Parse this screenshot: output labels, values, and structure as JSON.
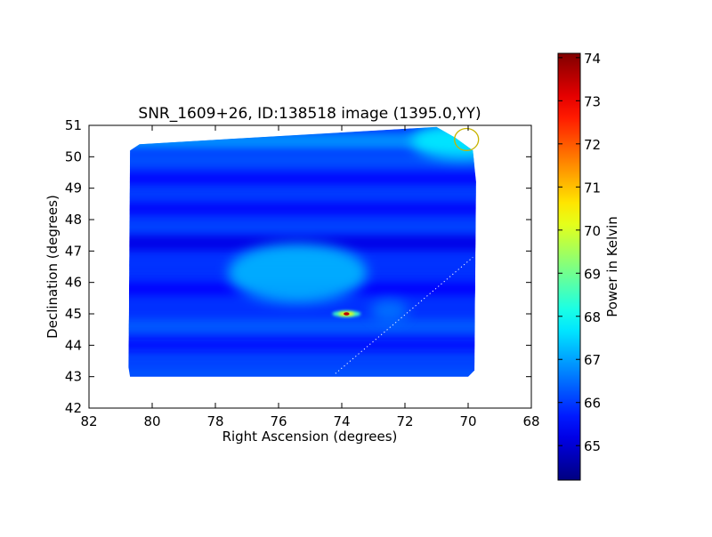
{
  "chart_data": {
    "type": "heatmap",
    "title": "SNR_1609+26, ID:138518 image (1395.0,YY)",
    "xlabel": "Right Ascension (degrees)",
    "ylabel": "Declination (degrees)",
    "xlim": [
      82,
      68
    ],
    "ylim": [
      42,
      51
    ],
    "x_ticks": [
      82,
      80,
      78,
      76,
      74,
      72,
      70,
      68
    ],
    "y_ticks": [
      42,
      43,
      44,
      45,
      46,
      47,
      48,
      49,
      50,
      51
    ],
    "colorbar": {
      "label": "Power in Kelvin",
      "range": [
        64.2,
        74.1
      ],
      "ticks": [
        65,
        66,
        67,
        68,
        69,
        70,
        71,
        72,
        73,
        74
      ],
      "colormap": "jet"
    },
    "map_region": {
      "outline": [
        [
          80.7,
          43.0
        ],
        [
          80.75,
          43.3
        ],
        [
          80.7,
          50.2
        ],
        [
          80.4,
          50.4
        ],
        [
          71.0,
          50.95
        ],
        [
          70.4,
          50.6
        ],
        [
          69.85,
          50.2
        ],
        [
          69.75,
          49.2
        ],
        [
          69.8,
          43.2
        ],
        [
          70.0,
          43.0
        ]
      ],
      "background_level": 65.9
    },
    "bands": [
      {
        "dec": 50.5,
        "width": 0.55,
        "level": 66.8
      },
      {
        "dec": 49.9,
        "width": 0.45,
        "level": 66.2
      },
      {
        "dec": 49.3,
        "width": 0.3,
        "level": 65.5
      },
      {
        "dec": 48.8,
        "width": 0.35,
        "level": 66.0
      },
      {
        "dec": 48.35,
        "width": 0.3,
        "level": 65.4
      },
      {
        "dec": 47.75,
        "width": 0.35,
        "level": 66.1
      },
      {
        "dec": 47.25,
        "width": 0.45,
        "level": 65.2
      },
      {
        "dec": 46.6,
        "width": 0.3,
        "level": 65.9
      },
      {
        "dec": 45.8,
        "width": 0.4,
        "level": 65.5
      },
      {
        "dec": 44.6,
        "width": 0.45,
        "level": 66.3
      },
      {
        "dec": 44.0,
        "width": 0.35,
        "level": 65.6
      },
      {
        "dec": 43.5,
        "width": 0.4,
        "level": 66.1
      },
      {
        "dec": 43.1,
        "width": 0.25,
        "level": 66.4
      }
    ],
    "features": [
      {
        "name": "extended-source",
        "ra": 75.4,
        "dec": 46.3,
        "rx": 2.2,
        "ry": 0.95,
        "peak": 67.3
      },
      {
        "name": "northeast-corner",
        "ra": 70.2,
        "dec": 50.5,
        "rx": 1.6,
        "ry": 0.6,
        "peak": 67.8
      },
      {
        "name": "faint-knot",
        "ra": 72.5,
        "dec": 45.1,
        "rx": 0.6,
        "ry": 0.35,
        "peak": 66.6
      },
      {
        "name": "compact-source",
        "ra": 73.85,
        "dec": 45.0,
        "rx": 0.45,
        "ry": 0.08,
        "peak": 73.5
      }
    ],
    "overlays": {
      "circle": {
        "ra": 70.05,
        "dec": 50.55,
        "radius_ra": 0.38,
        "radius_dec": 0.35,
        "color": "#c8b400"
      },
      "dotted_line": {
        "from": [
          74.2,
          43.1
        ],
        "to": [
          69.85,
          46.8
        ],
        "color": "#ffffff"
      }
    }
  }
}
